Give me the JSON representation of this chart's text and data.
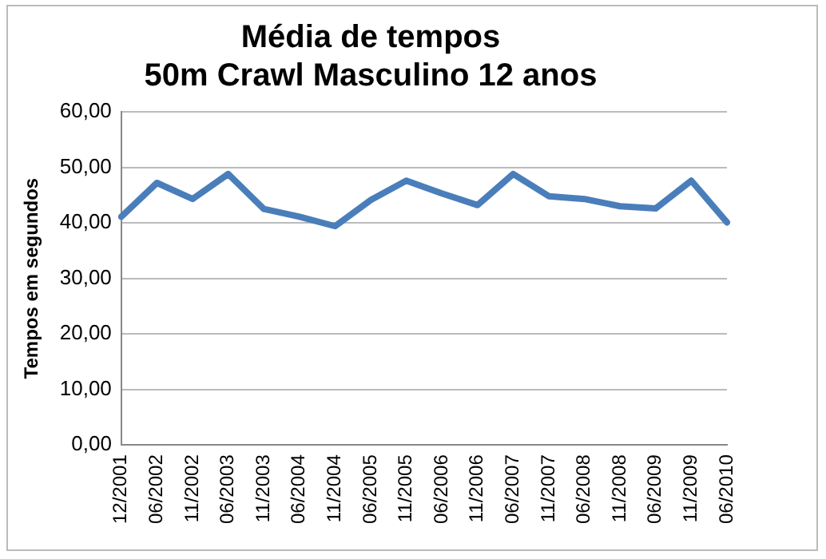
{
  "chart_data": {
    "type": "line",
    "title": "Média de tempos\n50m Crawl Masculino 12 anos",
    "ylabel": "Tempos em segundos",
    "categories": [
      "12/2001",
      "06/2002",
      "11/2002",
      "06/2003",
      "11/2003",
      "06/2004",
      "11/2004",
      "06/2005",
      "11/2005",
      "06/2006",
      "11/2006",
      "06/2007",
      "11/2007",
      "06/2008",
      "11/2008",
      "06/2009",
      "11/2009",
      "06/2010"
    ],
    "series": [
      {
        "color": "#4a7ebb",
        "values": [
          41.1,
          47.2,
          44.3,
          48.8,
          42.5,
          41.1,
          39.4,
          44.1,
          47.6,
          45.3,
          43.2,
          48.8,
          44.8,
          44.3,
          43.0,
          42.6,
          47.6,
          40.1
        ]
      }
    ],
    "ylim": [
      0,
      60
    ],
    "yticks": [
      {
        "value": 0,
        "label": "0,00"
      },
      {
        "value": 10,
        "label": "10,00"
      },
      {
        "value": 20,
        "label": "20,00"
      },
      {
        "value": 30,
        "label": "30,00"
      },
      {
        "value": 40,
        "label": "40,00"
      },
      {
        "value": 50,
        "label": "50,00"
      },
      {
        "value": 60,
        "label": "60,00"
      }
    ],
    "grid": "y",
    "legend": false,
    "marker": "none",
    "line_style": "solid"
  }
}
